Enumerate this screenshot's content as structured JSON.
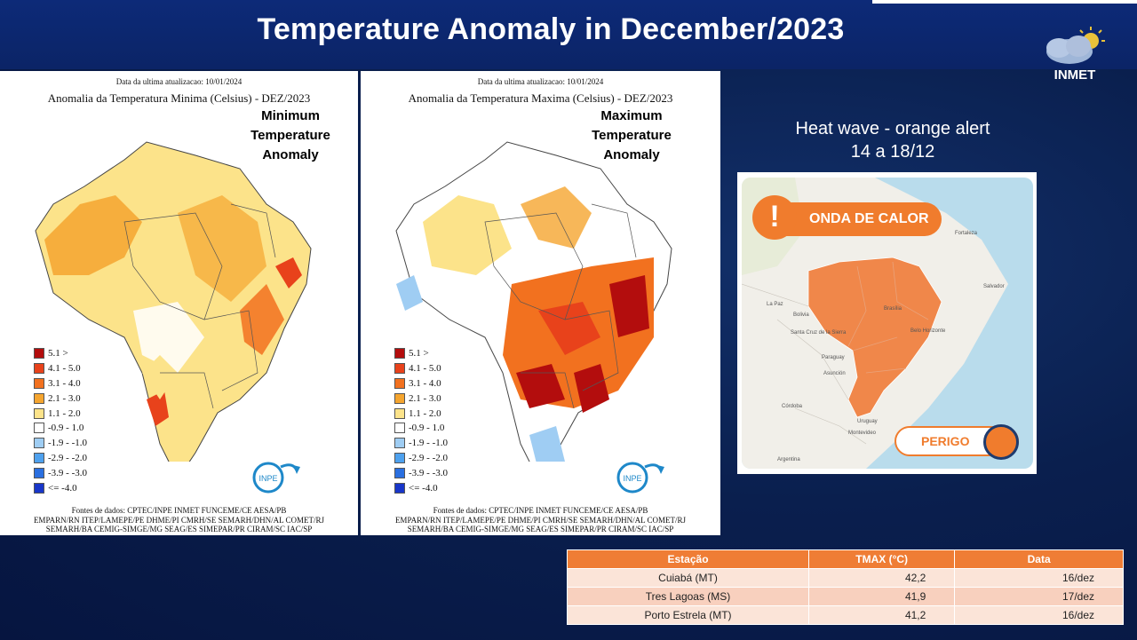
{
  "slide": {
    "title": "Temperature Anomaly in December/2023"
  },
  "logo": {
    "text": "INMET"
  },
  "min_map": {
    "updated": "Data da ultima atualizacao: 10/01/2024",
    "title": "Anomalia da Temperatura Minima (Celsius) - DEZ/2023",
    "label_en": [
      "Minimum",
      "Temperature",
      "Anomaly"
    ],
    "logo_text": "INPE",
    "sources": [
      "Fontes de dados: CPTEC/INPE INMET FUNCEME/CE AESA/PB",
      "EMPARN/RN ITEP/LAMEPE/PE DHME/PI CMRH/SE SEMARH/DHN/AL COMET/RJ",
      "SEMARH/BA CEMIG-SIMGE/MG SEAG/ES SIMEPAR/PR CIRAM/SC IAC/SP"
    ]
  },
  "max_map": {
    "updated": "Data da ultima atualizacao: 10/01/2024",
    "title": "Anomalia da Temperatura Maxima (Celsius) - DEZ/2023",
    "label_en": [
      "Maximum",
      "Temperature",
      "Anomaly"
    ],
    "logo_text": "INPE",
    "sources": [
      "Fontes de dados: CPTEC/INPE INMET FUNCEME/CE AESA/PB",
      "EMPARN/RN ITEP/LAMEPE/PE DHME/PI CMRH/SE SEMARH/DHN/AL COMET/RJ",
      "SEMARH/BA CEMIG-SIMGE/MG SEAG/ES SIMEPAR/PR CIRAM/SC IAC/SP"
    ]
  },
  "legend": [
    {
      "label": "5.1 >",
      "color": "#b30d0d"
    },
    {
      "label": "4.1 - 5.0",
      "color": "#e8421b"
    },
    {
      "label": "3.1 - 4.0",
      "color": "#f2711f"
    },
    {
      "label": "2.1 - 3.0",
      "color": "#f5a52f"
    },
    {
      "label": "1.1 - 2.0",
      "color": "#fce38a"
    },
    {
      "label": "-0.9 - 1.0",
      "color": "#ffffff"
    },
    {
      "label": "-1.9 - -1.0",
      "color": "#9fcdf3"
    },
    {
      "label": "-2.9 - -2.0",
      "color": "#4ea1ee"
    },
    {
      "label": "-3.9 - -3.0",
      "color": "#2a6fe0"
    },
    {
      "label": "<= -4.0",
      "color": "#1836c9"
    }
  ],
  "heatwave": {
    "title_line1": "Heat wave - orange alert",
    "title_line2": "14 a 18/12",
    "alert_label": "ONDA DE CALOR",
    "alert_symbol": "!",
    "level_label": "PERIGO",
    "alert_color": "#f07c2d",
    "cities": [
      "Fortaleza",
      "Salvador",
      "Brasília",
      "Belo Horizonte",
      "La Paz",
      "Bolivia",
      "Santa Cruz de la Sierra",
      "Paraguay",
      "Asunción",
      "Córdoba",
      "Uruguay",
      "Montevideo",
      "Argentina"
    ]
  },
  "table": {
    "headers": [
      "Estação",
      "TMAX (°C)",
      "Data"
    ],
    "rows": [
      [
        "Cuiabá (MT)",
        "42,2",
        "16/dez"
      ],
      [
        "Tres Lagoas (MS)",
        "41,9",
        "17/dez"
      ],
      [
        "Porto Estrela (MT)",
        "41,2",
        "16/dez"
      ]
    ]
  }
}
